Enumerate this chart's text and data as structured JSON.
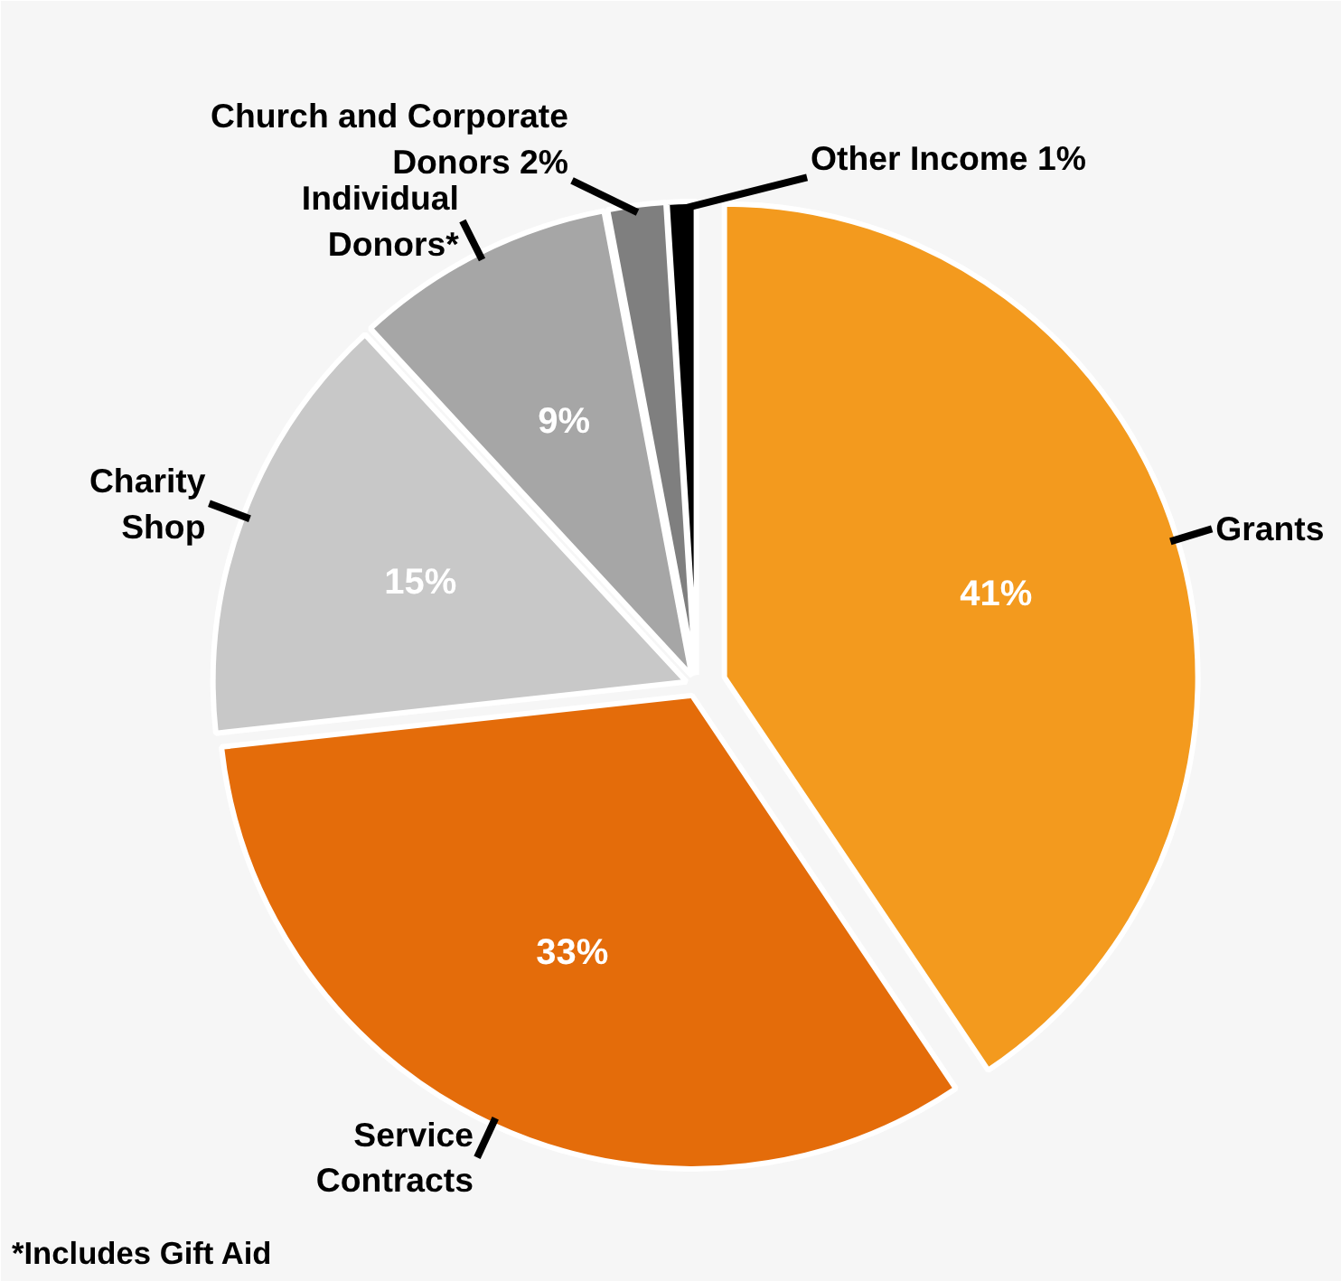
{
  "chart_data": {
    "type": "pie",
    "categories": [
      "Grants",
      "Service Contracts",
      "Charity Shop",
      "Individual Donors*",
      "Church and Corporate Donors",
      "Other Income"
    ],
    "values": [
      41,
      33,
      15,
      9,
      2,
      1
    ],
    "colors": [
      "#f39a1e",
      "#e46c0a",
      "#c8c8c8",
      "#a6a6a6",
      "#7f7f7f",
      "#000000"
    ],
    "value_labels": [
      "41%",
      "33%",
      "15%",
      "9%",
      "2%",
      "1%"
    ],
    "annotations": [
      "*Includes Gift Aid"
    ]
  }
}
